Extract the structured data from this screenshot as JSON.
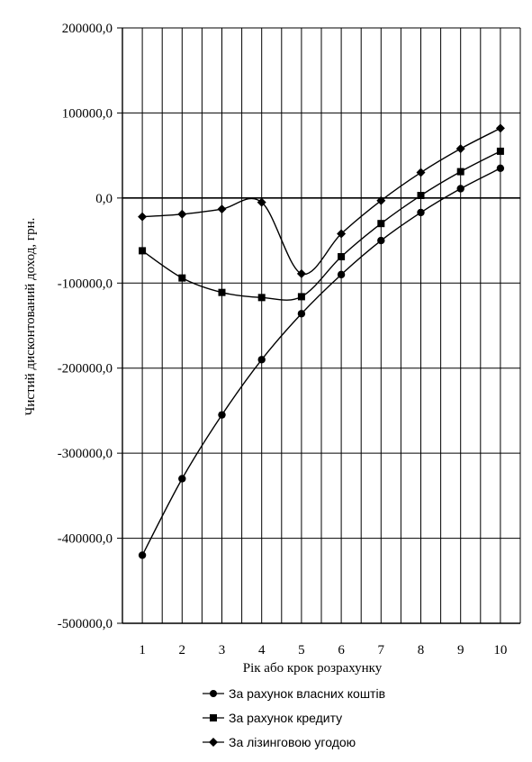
{
  "chart_data": {
    "type": "line",
    "title": "",
    "xlabel": "Рік або крок розрахунку",
    "ylabel": "Чистий дисконтований доход, грн.",
    "categories": [
      "1",
      "2",
      "3",
      "4",
      "5",
      "6",
      "7",
      "8",
      "9",
      "10"
    ],
    "ylim": [
      -500000,
      200000
    ],
    "yticks": [
      200000,
      100000,
      0,
      -100000,
      -200000,
      -300000,
      -400000,
      -500000
    ],
    "ytick_labels": [
      "200000,0",
      "100000,0",
      "0,0",
      "-100000,0",
      "-200000,0",
      "-300000,0",
      "-400000,0",
      "-500000,0"
    ],
    "grid": "vertical and horizontal gridlines",
    "legend_position": "bottom",
    "series": [
      {
        "name": "За рахунок власних коштів",
        "marker": "circle",
        "values": [
          -420000,
          -330000,
          -255000,
          -190000,
          -136000,
          -90000,
          -50000,
          -17000,
          11000,
          35000
        ]
      },
      {
        "name": "За рахунок кредиту",
        "marker": "square",
        "values": [
          -62000,
          -94000,
          -111000,
          -117000,
          -116000,
          -69000,
          -30000,
          3000,
          31000,
          55000
        ]
      },
      {
        "name": "За лізинговою угодою",
        "marker": "diamond",
        "values": [
          -22000,
          -19000,
          -13000,
          -5000,
          -89000,
          -42000,
          -3000,
          30000,
          58000,
          82000
        ]
      }
    ]
  }
}
